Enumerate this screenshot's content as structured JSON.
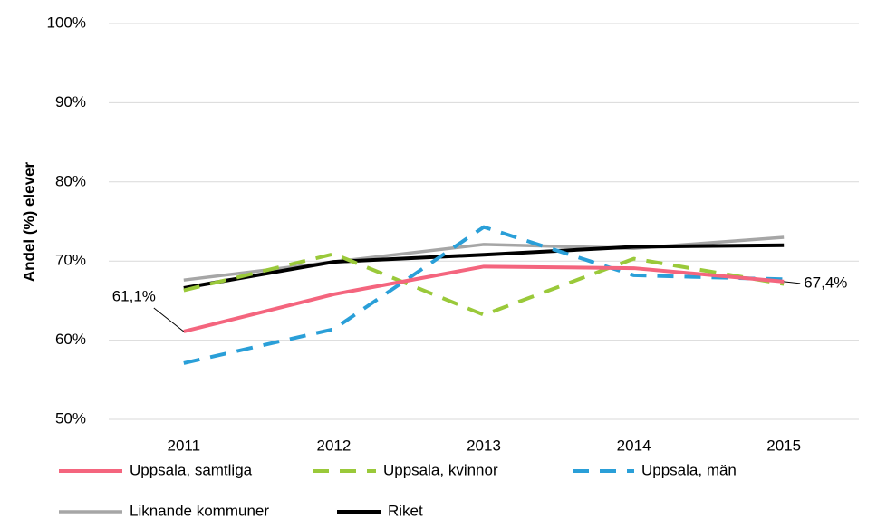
{
  "chart_data": {
    "type": "line",
    "y_axis_label": "Andel (%) elever",
    "categories": [
      "2011",
      "2012",
      "2013",
      "2014",
      "2015"
    ],
    "ylim": [
      50,
      100
    ],
    "yticks": [
      {
        "value": 50,
        "label": "50%"
      },
      {
        "value": 60,
        "label": "60%"
      },
      {
        "value": 70,
        "label": "70%"
      },
      {
        "value": 80,
        "label": "80%"
      },
      {
        "value": 90,
        "label": "90%"
      },
      {
        "value": 100,
        "label": "100%"
      }
    ],
    "grid": true,
    "legend": "bottom",
    "series": [
      {
        "name": "Uppsala, samtliga",
        "color": "#f4657e",
        "dashed": false,
        "values": [
          61.1,
          65.8,
          69.3,
          69.1,
          67.4
        ],
        "value_labels": [
          "61,1%",
          null,
          null,
          null,
          "67,4%"
        ]
      },
      {
        "name": "Uppsala, kvinnor",
        "color": "#9ac93a",
        "dashed": true,
        "values": [
          66.3,
          70.9,
          63.2,
          70.3,
          67.1
        ]
      },
      {
        "name": "Uppsala, män",
        "color": "#2a9fd8",
        "dashed": true,
        "values": [
          57.1,
          61.4,
          74.3,
          68.2,
          67.7
        ]
      },
      {
        "name": "Liknande kommuner",
        "color": "#a6a6a6",
        "dashed": false,
        "values": [
          67.6,
          69.9,
          72.1,
          71.6,
          73.0
        ]
      },
      {
        "name": "Riket",
        "color": "#000000",
        "dashed": false,
        "values": [
          66.6,
          69.9,
          70.8,
          71.8,
          72.0
        ]
      }
    ]
  }
}
